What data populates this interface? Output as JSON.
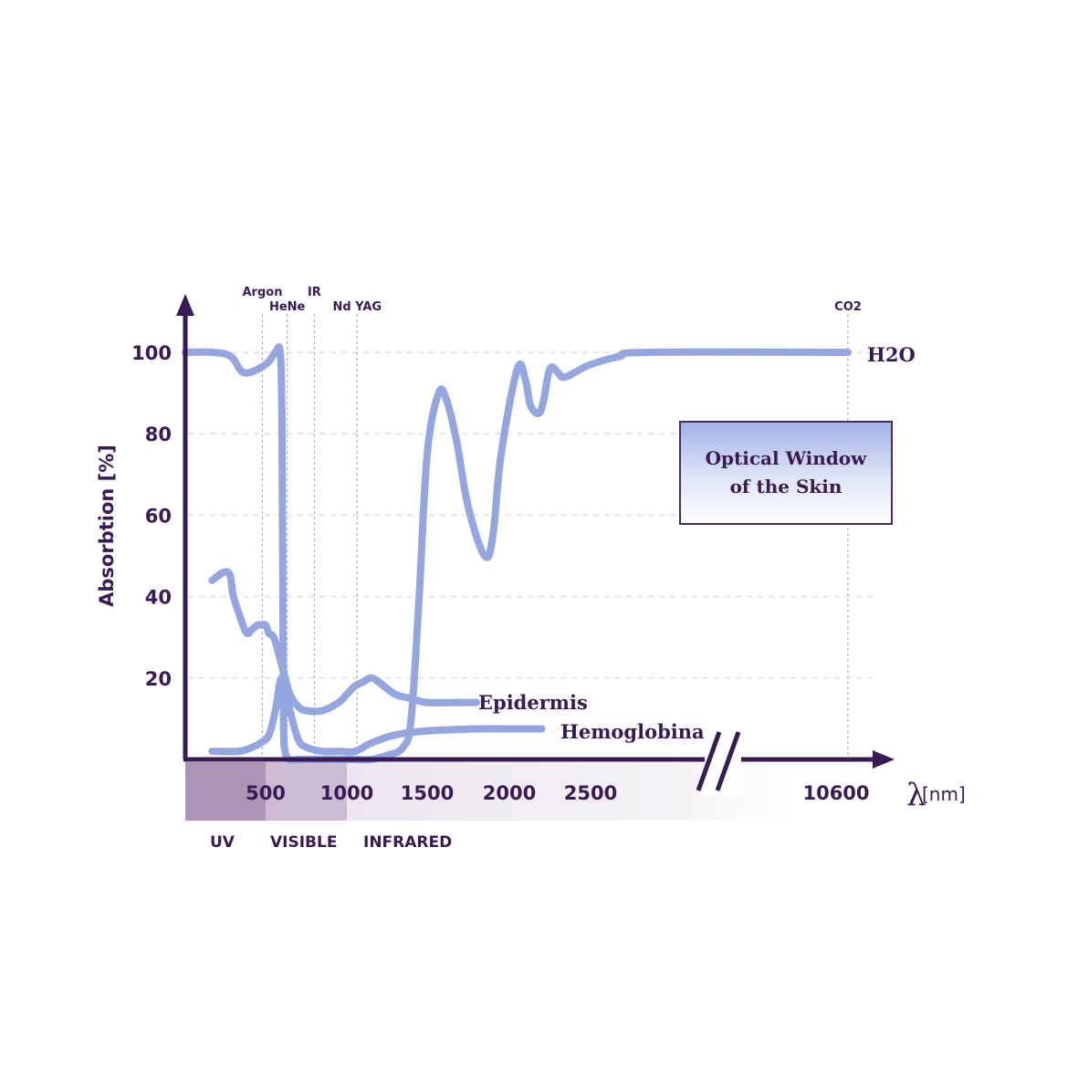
{
  "chart_data": {
    "type": "line",
    "title": "",
    "xlabel_symbol": "λ",
    "xlabel_unit": "[nm]",
    "ylabel": "Absorbtion [%]",
    "y_ticks": [
      "100",
      "80",
      "60",
      "40",
      "20"
    ],
    "y_tick_values": [
      100,
      80,
      60,
      40,
      20
    ],
    "ylim": [
      0,
      110
    ],
    "x_ticks": [
      "500",
      "1000",
      "1500",
      "2000",
      "2500",
      "10600"
    ],
    "x_tick_values": [
      500,
      1000,
      1500,
      2000,
      2500,
      10600
    ],
    "axis_break_between": [
      2500,
      10600
    ],
    "grid": true,
    "lasers": [
      {
        "name": "Argon",
        "wavelength": 488
      },
      {
        "name": "HeNe",
        "wavelength": 633
      },
      {
        "name": "IR",
        "wavelength": 800
      },
      {
        "name": "Nd YAG",
        "wavelength": 1064
      },
      {
        "name": "CO2",
        "wavelength": 10600
      }
    ],
    "bands": [
      {
        "name": "UV",
        "range": [
          200,
          500
        ],
        "color": "#ad94b5"
      },
      {
        "name": "VISIBLE",
        "range": [
          500,
          1000
        ],
        "color": "#cbbbd3"
      },
      {
        "name": "INFRARED",
        "range": [
          1000,
          10600
        ],
        "color": "#ece6f0"
      }
    ],
    "annotation": {
      "line1": "Optical Window",
      "line2": "of the Skin"
    },
    "line_color": "#93a6e0",
    "series": [
      {
        "name": "H2O",
        "x": [
          200,
          300,
          370,
          420,
          500,
          560,
          590,
          600,
          605,
          610,
          620,
          650,
          700,
          750,
          850,
          950,
          1050,
          1150,
          1250,
          1350,
          1400,
          1450,
          1500,
          1570,
          1620,
          1680,
          1750,
          1850,
          1900,
          1950,
          2050,
          2100,
          2130,
          2180,
          2210,
          2250,
          2300,
          2320,
          2350,
          2400,
          2500,
          2700,
          2900,
          10600
        ],
        "y": [
          100,
          100,
          99,
          95,
          97,
          100,
          100,
          85,
          50,
          10,
          2,
          0,
          0,
          0,
          0,
          0,
          0,
          0,
          1,
          3,
          10,
          40,
          75,
          90,
          88,
          78,
          62,
          50,
          55,
          75,
          96,
          93,
          87,
          85,
          88,
          96,
          95,
          94,
          94,
          95,
          97,
          99,
          100,
          100
        ]
      },
      {
        "name": "Epidermis",
        "x": [
          300,
          360,
          380,
          410,
          430,
          450,
          470,
          480,
          500,
          520,
          550,
          580,
          620,
          650,
          700,
          750,
          850,
          950,
          1000,
          1050,
          1100,
          1150,
          1200,
          1300,
          1400,
          1500,
          1700,
          1800
        ],
        "y": [
          44,
          46,
          40,
          34,
          31,
          32,
          33,
          33,
          33,
          31,
          30,
          26,
          20,
          16,
          13,
          12,
          12,
          14,
          16,
          18,
          19,
          20,
          19,
          16,
          15,
          14,
          14,
          14
        ]
      },
      {
        "name": "Hemoglobina",
        "x": [
          300,
          400,
          450,
          480,
          520,
          560,
          600,
          650,
          700,
          750,
          850,
          950,
          1050,
          1150,
          1300,
          1500,
          1800,
          2000,
          2200
        ],
        "y": [
          2,
          2,
          3,
          4,
          6,
          12,
          20,
          12,
          5,
          3,
          2,
          2,
          2,
          4,
          6,
          7,
          7.5,
          7.5,
          7.5
        ]
      }
    ]
  }
}
